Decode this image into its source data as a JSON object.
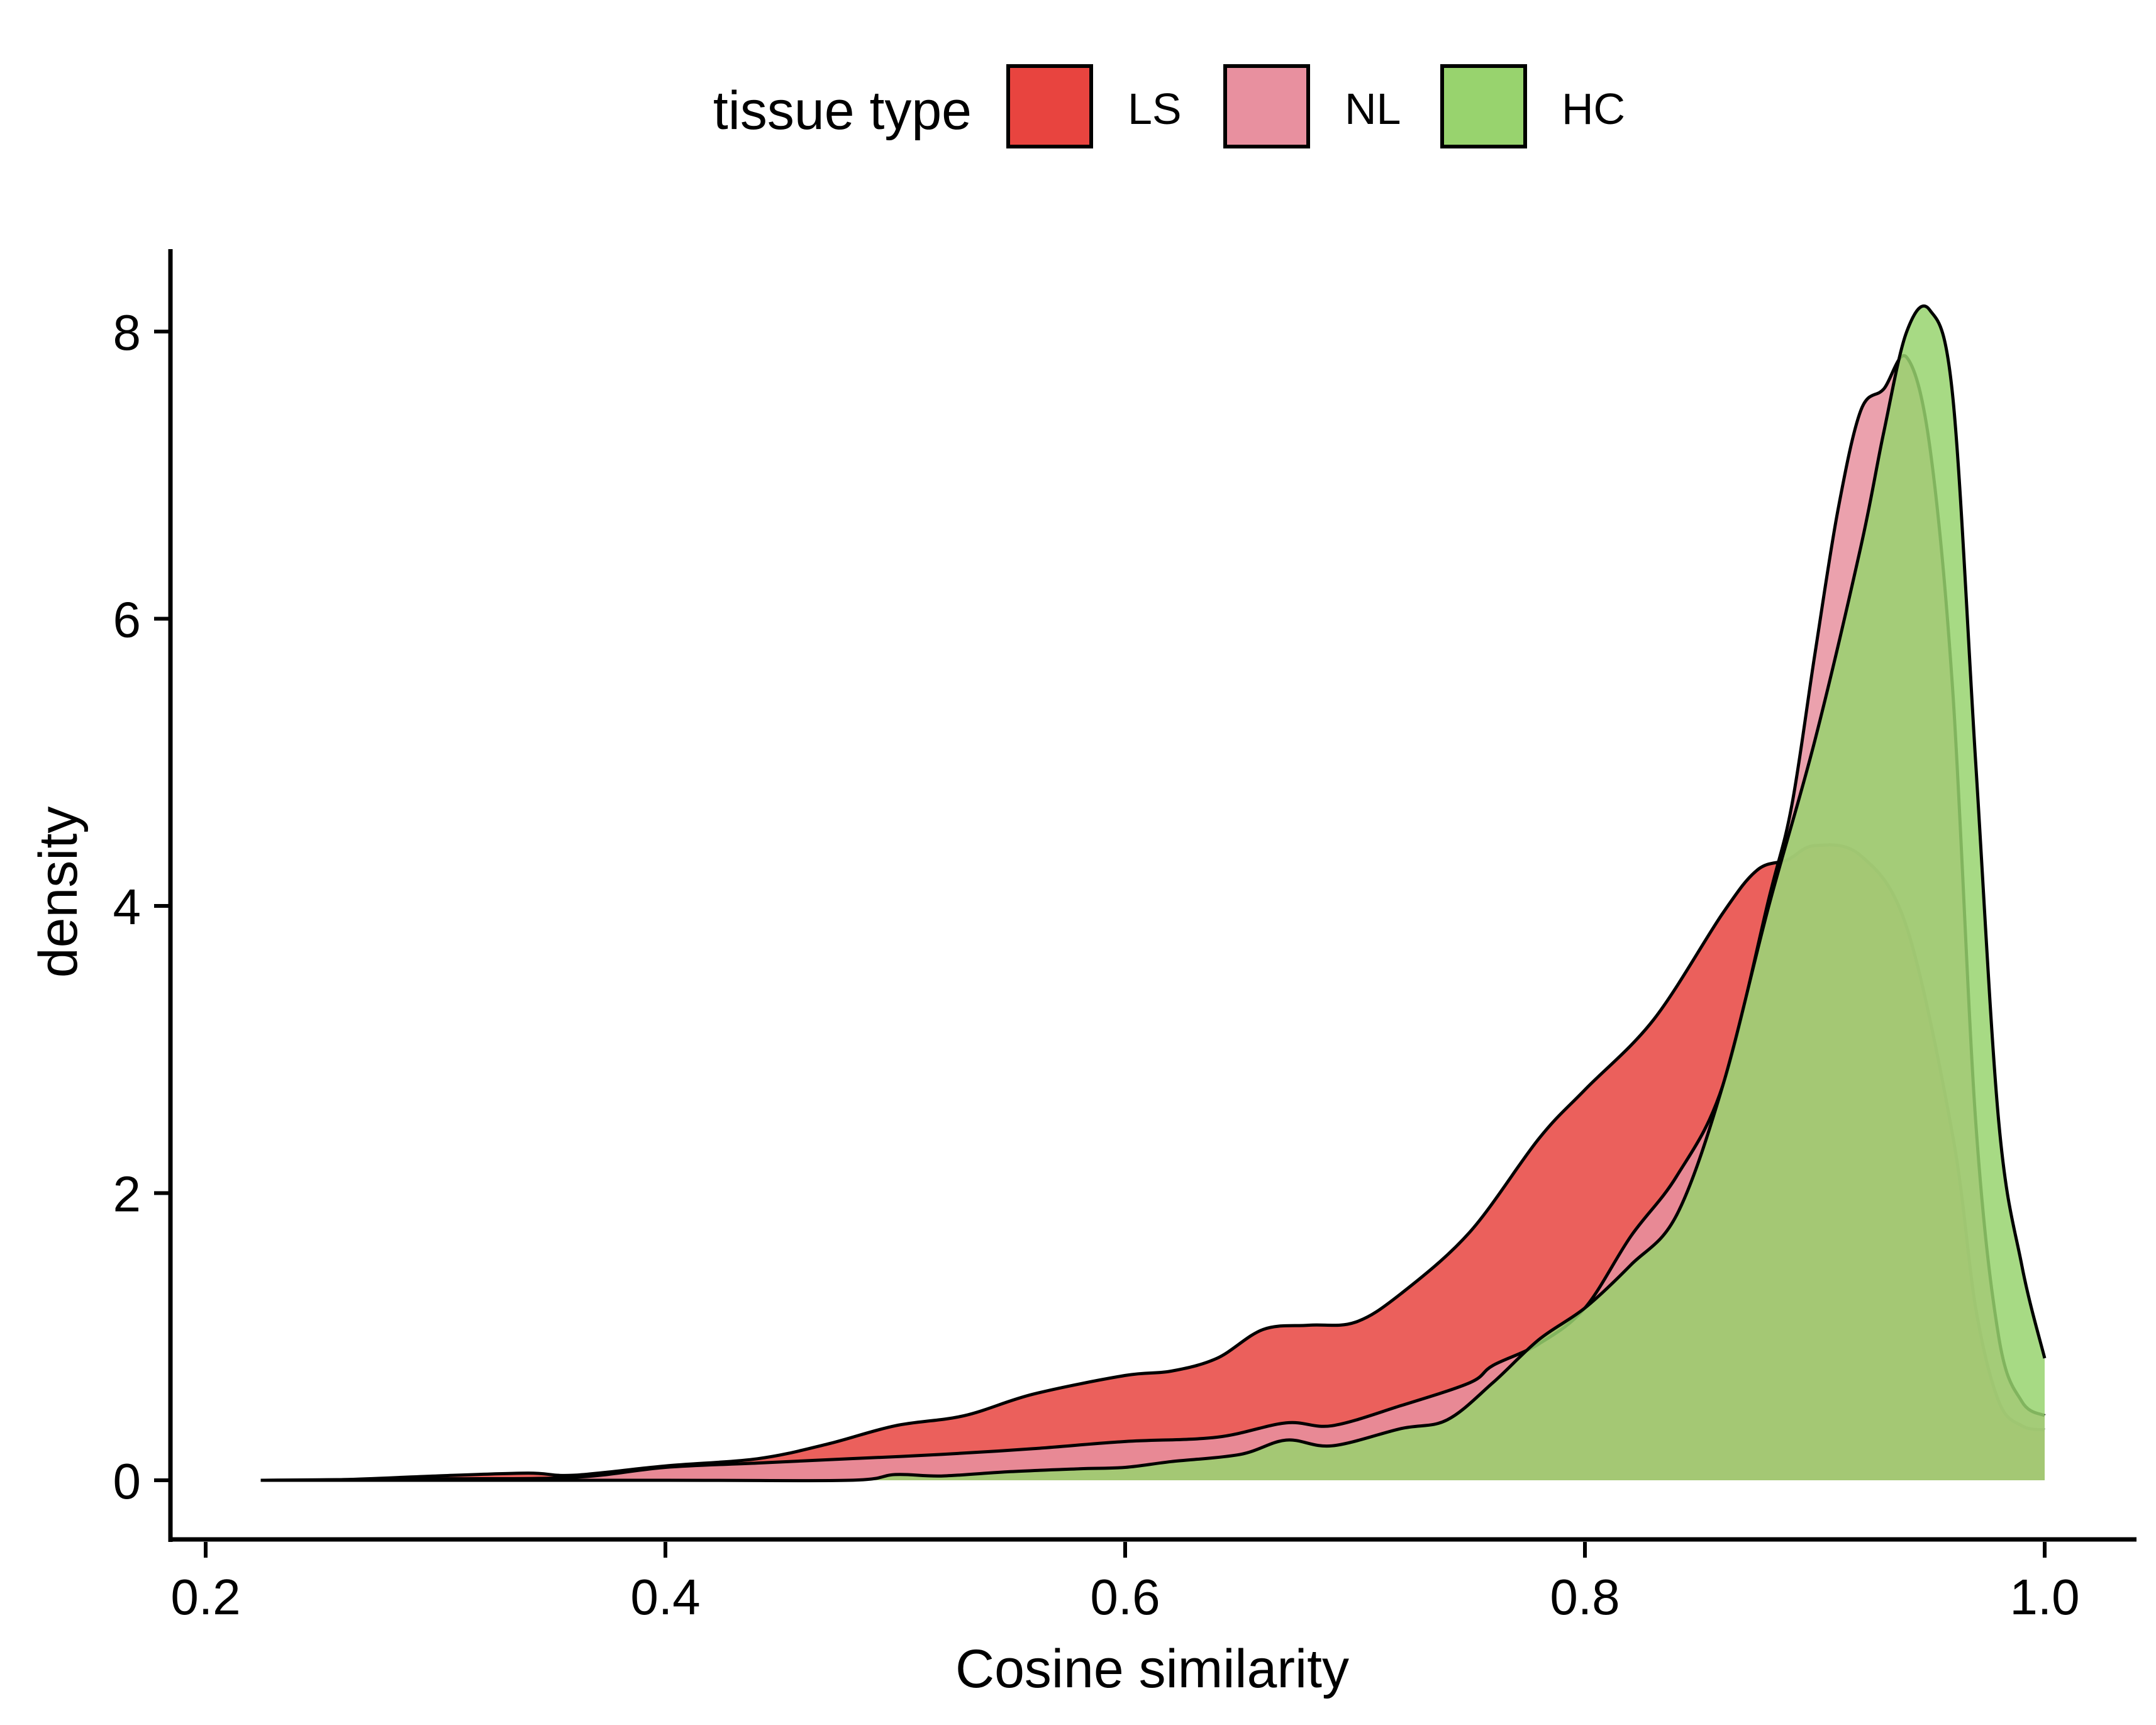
{
  "chart_data": {
    "type": "area",
    "xlabel": "Cosine similarity",
    "ylabel": "density",
    "xlim": [
      0.2,
      1.0
    ],
    "ylim": [
      0,
      8
    ],
    "x_ticks": [
      "0.2",
      "0.4",
      "0.6",
      "0.8",
      "1.0"
    ],
    "y_ticks": [
      "0",
      "2",
      "4",
      "6",
      "8"
    ],
    "grid": false,
    "legend": {
      "title": "tissue type",
      "placement": "top",
      "entries": [
        "LS",
        "NL",
        "HC"
      ]
    },
    "series": [
      {
        "name": "LS",
        "color": "#E8443F",
        "points": [
          [
            0.224,
            0
          ],
          [
            0.26,
            0.005
          ],
          [
            0.3,
            0.03
          ],
          [
            0.34,
            0.05
          ],
          [
            0.36,
            0.035
          ],
          [
            0.4,
            0.1
          ],
          [
            0.44,
            0.15
          ],
          [
            0.47,
            0.25
          ],
          [
            0.5,
            0.38
          ],
          [
            0.53,
            0.45
          ],
          [
            0.56,
            0.6
          ],
          [
            0.6,
            0.73
          ],
          [
            0.62,
            0.76
          ],
          [
            0.64,
            0.85
          ],
          [
            0.66,
            1.05
          ],
          [
            0.68,
            1.08
          ],
          [
            0.7,
            1.1
          ],
          [
            0.72,
            1.3
          ],
          [
            0.75,
            1.73
          ],
          [
            0.78,
            2.38
          ],
          [
            0.8,
            2.72
          ],
          [
            0.83,
            3.21
          ],
          [
            0.86,
            3.95
          ],
          [
            0.875,
            4.25
          ],
          [
            0.888,
            4.32
          ],
          [
            0.9,
            4.42
          ],
          [
            0.92,
            4.35
          ],
          [
            0.94,
            3.85
          ],
          [
            0.96,
            2.4
          ],
          [
            0.97,
            1.2
          ],
          [
            0.98,
            0.55
          ],
          [
            0.99,
            0.38
          ],
          [
            1.0,
            0.35
          ]
        ]
      },
      {
        "name": "NL",
        "color": "#E8909F",
        "points": [
          [
            0.224,
            0
          ],
          [
            0.3,
            0.01
          ],
          [
            0.36,
            0.02
          ],
          [
            0.4,
            0.09
          ],
          [
            0.44,
            0.12
          ],
          [
            0.48,
            0.15
          ],
          [
            0.52,
            0.18
          ],
          [
            0.56,
            0.22
          ],
          [
            0.6,
            0.27
          ],
          [
            0.64,
            0.3
          ],
          [
            0.67,
            0.4
          ],
          [
            0.69,
            0.38
          ],
          [
            0.72,
            0.52
          ],
          [
            0.75,
            0.68
          ],
          [
            0.76,
            0.8
          ],
          [
            0.78,
            0.95
          ],
          [
            0.8,
            1.2
          ],
          [
            0.82,
            1.7
          ],
          [
            0.84,
            2.12
          ],
          [
            0.86,
            2.75
          ],
          [
            0.88,
            4.05
          ],
          [
            0.89,
            4.7
          ],
          [
            0.9,
            5.75
          ],
          [
            0.91,
            6.75
          ],
          [
            0.92,
            7.45
          ],
          [
            0.93,
            7.6
          ],
          [
            0.94,
            7.82
          ],
          [
            0.95,
            7.2
          ],
          [
            0.96,
            5.5
          ],
          [
            0.97,
            2.5
          ],
          [
            0.98,
            1.0
          ],
          [
            0.99,
            0.55
          ],
          [
            1.0,
            0.45
          ]
        ]
      },
      {
        "name": "HC",
        "color": "#98D36E",
        "points": [
          [
            0.224,
            0
          ],
          [
            0.4,
            0
          ],
          [
            0.48,
            0
          ],
          [
            0.5,
            0.04
          ],
          [
            0.52,
            0.03
          ],
          [
            0.55,
            0.06
          ],
          [
            0.58,
            0.08
          ],
          [
            0.6,
            0.09
          ],
          [
            0.62,
            0.13
          ],
          [
            0.65,
            0.18
          ],
          [
            0.67,
            0.28
          ],
          [
            0.69,
            0.24
          ],
          [
            0.72,
            0.36
          ],
          [
            0.74,
            0.42
          ],
          [
            0.76,
            0.68
          ],
          [
            0.78,
            0.98
          ],
          [
            0.8,
            1.2
          ],
          [
            0.82,
            1.5
          ],
          [
            0.84,
            1.85
          ],
          [
            0.86,
            2.75
          ],
          [
            0.88,
            4.0
          ],
          [
            0.9,
            5.15
          ],
          [
            0.92,
            6.5
          ],
          [
            0.93,
            7.3
          ],
          [
            0.94,
            8.0
          ],
          [
            0.95,
            8.15
          ],
          [
            0.96,
            7.55
          ],
          [
            0.97,
            5.0
          ],
          [
            0.98,
            2.5
          ],
          [
            0.99,
            1.5
          ],
          [
            1.0,
            0.85
          ]
        ]
      }
    ]
  }
}
